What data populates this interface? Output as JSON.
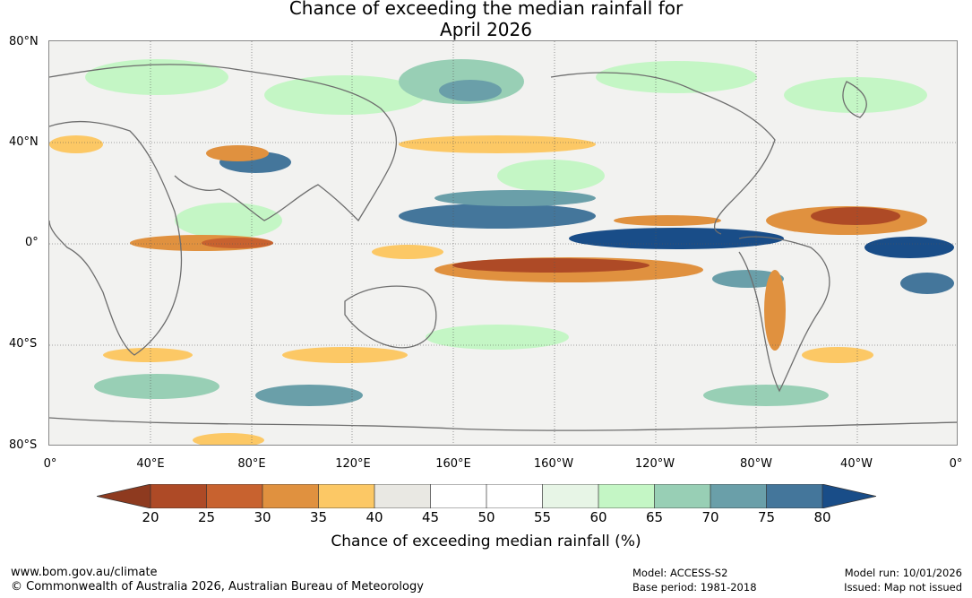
{
  "title": {
    "line1": "Chance of exceeding the median rainfall for",
    "line2": "April 2026"
  },
  "axes": {
    "lat_labels": [
      "80°N",
      "40°N",
      "0°",
      "40°S",
      "80°S"
    ],
    "lon_labels": [
      "0°",
      "40°E",
      "80°E",
      "120°E",
      "160°E",
      "160°W",
      "120°W",
      "80°W",
      "40°W",
      "0°"
    ]
  },
  "colorbar": {
    "ticks": [
      "20",
      "25",
      "30",
      "35",
      "40",
      "45",
      "50",
      "55",
      "60",
      "65",
      "70",
      "75",
      "80"
    ],
    "label": "Chance of exceeding median rainfall (%)",
    "colors": {
      "below_20": "#8e3a1f",
      "20_25": "#ae4a26",
      "25_30": "#c8622f",
      "30_35": "#e0913f",
      "35_40": "#fcc865",
      "40_45": "#e9e8e3",
      "45_50": "#ffffff",
      "50_55": "#ffffff",
      "55_60": "#e7f5e6",
      "60_65": "#c4f6c5",
      "65_70": "#98cfb5",
      "70_75": "#6a9fa9",
      "75_80": "#44769b",
      "above_80": "#194d88"
    }
  },
  "footer": {
    "website": "www.bom.gov.au/climate",
    "copyright": "© Commonwealth of Australia 2026, Australian Bureau of Meteorology",
    "model": "Model: ACCESS-S2",
    "base_period": "Base period: 1981-2018",
    "model_run": "Model run: 10/01/2026",
    "issued": "Issued: Map not issued"
  }
}
